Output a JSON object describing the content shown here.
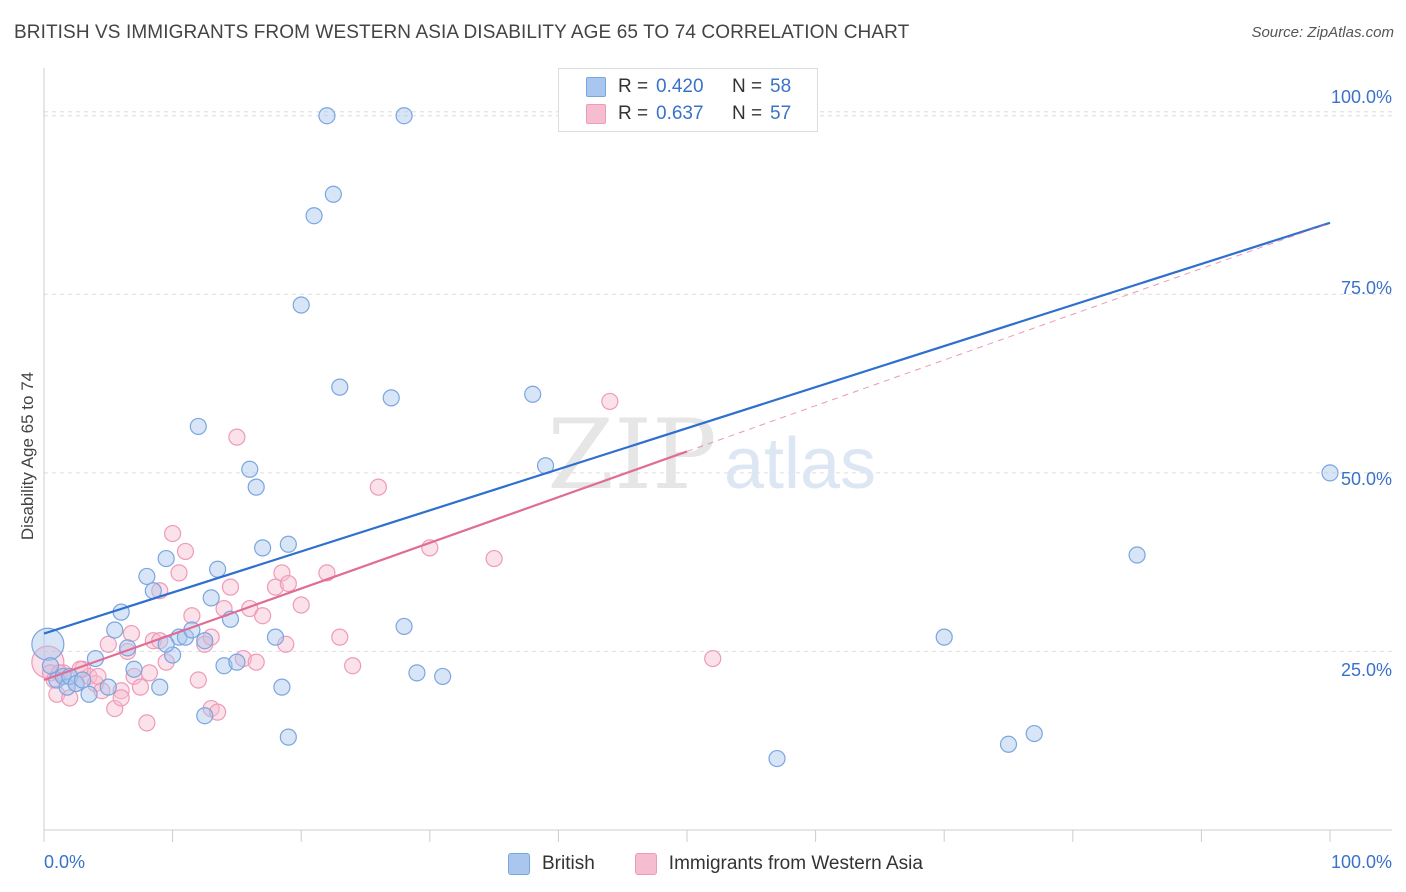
{
  "title": "BRITISH VS IMMIGRANTS FROM WESTERN ASIA DISABILITY AGE 65 TO 74 CORRELATION CHART",
  "source": "Source: ZipAtlas.com",
  "watermark": {
    "zip": "ZIP",
    "atlas": "atlas"
  },
  "legend_top": {
    "british": {
      "r_label": "R =",
      "r_value": "0.420",
      "n_label": "N =",
      "n_value": "58"
    },
    "immigrants": {
      "r_label": "R =",
      "r_value": "0.637",
      "n_label": "N =",
      "n_value": "57"
    }
  },
  "legend_bottom": {
    "british": "British",
    "immigrants": "Immigrants from Western Asia"
  },
  "colors": {
    "british_fill": "#a9c6ee",
    "british_stroke": "#7aa6e0",
    "british_line": "#2f6fce",
    "immigrants_fill": "#f6bcd0",
    "immigrants_stroke": "#ee9bb7",
    "immigrants_line": "#e06d95",
    "tick_label": "#3a72c9",
    "grid": "#dddddd"
  },
  "chart_data": {
    "type": "scatter",
    "title": "BRITISH VS IMMIGRANTS FROM WESTERN ASIA DISABILITY AGE 65 TO 74 CORRELATION CHART",
    "xlabel": "",
    "ylabel": "Disability Age 65 to 74",
    "xlim": [
      0,
      100
    ],
    "ylim": [
      0,
      105
    ],
    "x_tick_labels": [
      "0.0%",
      "100.0%"
    ],
    "y_ticks": [
      25,
      50,
      75,
      100
    ],
    "y_tick_labels": [
      "25.0%",
      "50.0%",
      "75.0%",
      "100.0%"
    ],
    "grid": true,
    "legend_position": "top-center",
    "series": [
      {
        "name": "British",
        "x": [
          0.3,
          0.5,
          1.0,
          1.5,
          1.8,
          2.0,
          2.5,
          3.0,
          3.5,
          4.0,
          5.0,
          5.5,
          6.0,
          6.5,
          7.0,
          8.0,
          8.5,
          9.0,
          9.5,
          10.0,
          10.5,
          11.0,
          11.5,
          12.0,
          12.5,
          13.0,
          13.5,
          14.0,
          14.5,
          15.0,
          16.0,
          16.5,
          17.0,
          18.0,
          18.5,
          19.0,
          19.0,
          20.0,
          21.0,
          22.0,
          22.5,
          23.0,
          27.0,
          28.0,
          29.0,
          28.0,
          31.0,
          38.0,
          39.0,
          50.0,
          57.0,
          70.0,
          75.0,
          77.0,
          85.0,
          100.0,
          12.5,
          9.5
        ],
        "y": [
          26.0,
          23.0,
          21.0,
          21.5,
          20.0,
          21.5,
          20.5,
          21.0,
          19.0,
          24.0,
          20.0,
          28.0,
          30.5,
          25.5,
          22.5,
          35.5,
          33.5,
          20.0,
          38.0,
          24.5,
          27.0,
          27.0,
          28.0,
          56.5,
          16.0,
          32.5,
          36.5,
          23.0,
          29.5,
          23.5,
          50.5,
          48.0,
          39.5,
          27.0,
          20.0,
          40.0,
          13.0,
          73.5,
          86.0,
          100.0,
          89.0,
          62.0,
          60.5,
          100.0,
          22.0,
          28.5,
          21.5,
          61.0,
          51.0,
          100.0,
          10.0,
          27.0,
          12.0,
          13.5,
          38.5,
          50.0,
          26.5,
          26.0
        ]
      },
      {
        "name": "Immigrants from Western Asia",
        "x": [
          0.3,
          0.5,
          0.8,
          1.0,
          1.5,
          2.0,
          2.5,
          3.0,
          3.5,
          4.0,
          4.5,
          5.0,
          5.5,
          6.0,
          6.5,
          7.0,
          7.5,
          8.0,
          8.5,
          9.0,
          9.5,
          10.0,
          10.5,
          11.0,
          11.5,
          12.0,
          12.5,
          13.0,
          13.5,
          14.0,
          14.5,
          15.0,
          15.5,
          16.0,
          17.0,
          18.0,
          18.5,
          19.0,
          20.0,
          22.0,
          23.0,
          24.0,
          26.0,
          30.0,
          35.0,
          44.0,
          52.0,
          1.2,
          2.8,
          4.2,
          6.8,
          8.2,
          13.0,
          16.5,
          18.8,
          6.0,
          9.0
        ],
        "y": [
          23.5,
          22.0,
          21.0,
          19.0,
          22.0,
          18.5,
          20.5,
          22.5,
          21.5,
          20.5,
          19.5,
          26.0,
          17.0,
          19.5,
          25.0,
          21.5,
          20.0,
          15.0,
          26.5,
          33.5,
          23.5,
          41.5,
          36.0,
          39.0,
          30.0,
          21.0,
          26.0,
          17.0,
          16.5,
          31.0,
          34.0,
          55.0,
          24.0,
          31.0,
          30.0,
          34.0,
          36.0,
          34.5,
          31.5,
          36.0,
          27.0,
          23.0,
          48.0,
          39.5,
          38.0,
          60.0,
          24.0,
          22.0,
          22.5,
          21.5,
          27.5,
          22.0,
          27.0,
          23.5,
          26.0,
          18.5,
          26.5
        ]
      }
    ],
    "trend_lines": [
      {
        "series": "British",
        "x": [
          0,
          100
        ],
        "y": [
          27.5,
          85.0
        ]
      },
      {
        "series": "Immigrants from Western Asia",
        "x": [
          0,
          50
        ],
        "y": [
          21.0,
          53.0
        ]
      }
    ]
  }
}
